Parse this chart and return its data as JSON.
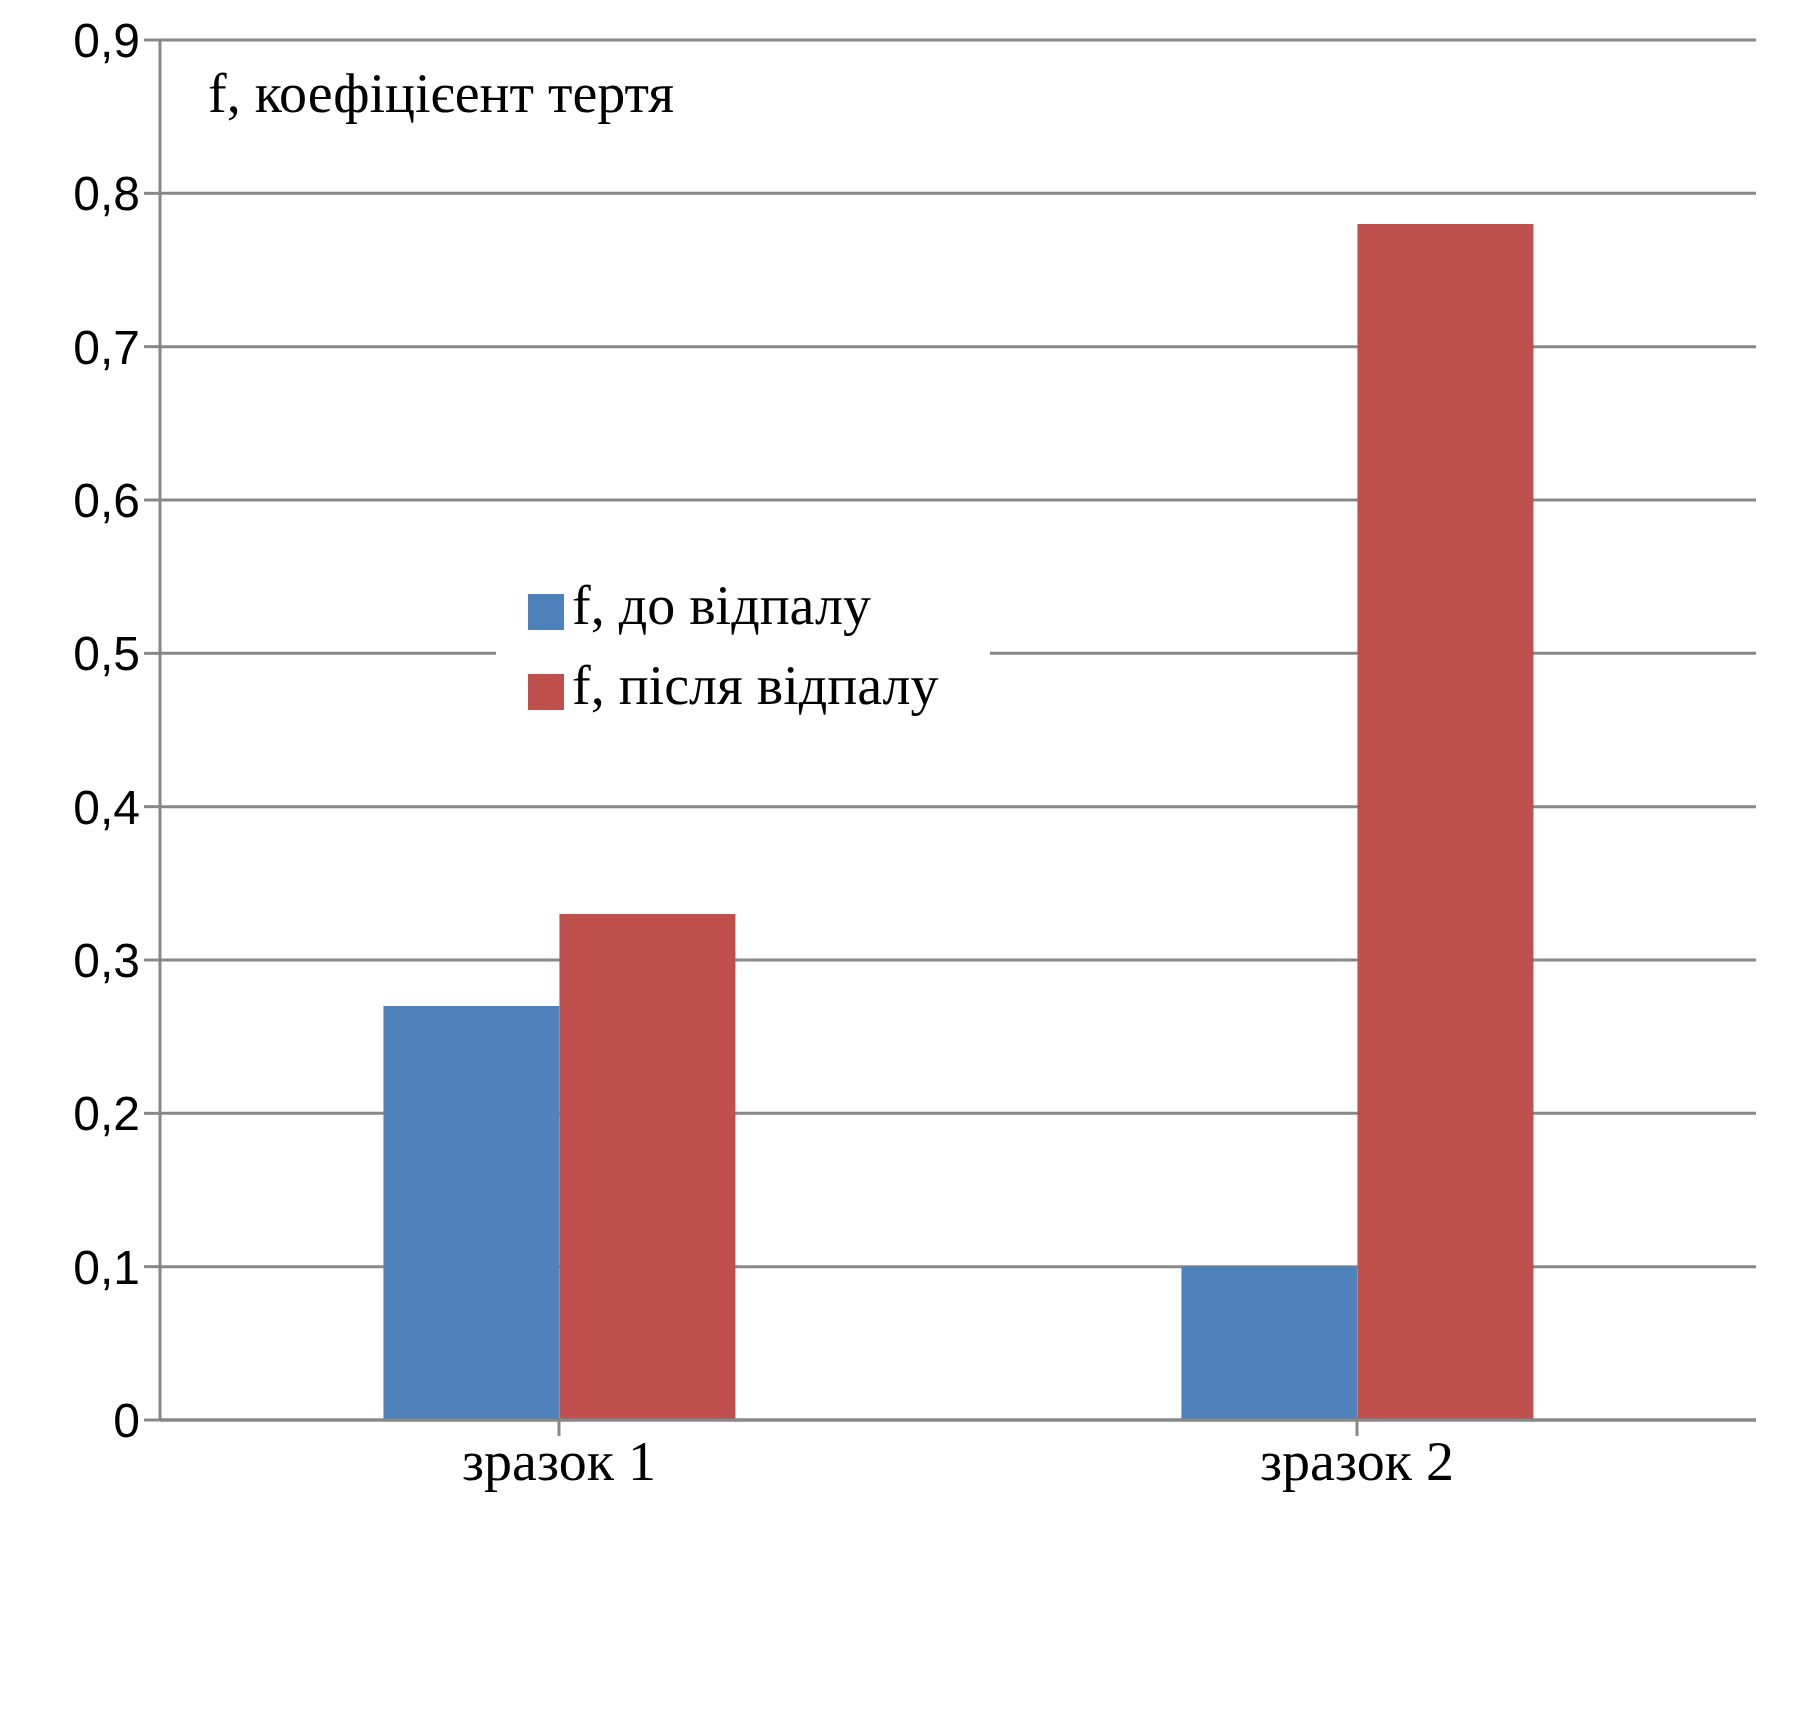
{
  "chart_data": {
    "type": "bar",
    "ylabel": "f, коефіцієент тертя",
    "categories": [
      "зразок 1",
      "зразок 2"
    ],
    "series": [
      {
        "name": "f, до відпалу",
        "color": "#4f81bd",
        "values": [
          0.27,
          0.1
        ]
      },
      {
        "name": "f, після відпалу",
        "color": "#c0504d",
        "values": [
          0.33,
          0.78
        ]
      }
    ],
    "ylim": [
      0,
      0.9
    ],
    "yticks": [
      0,
      {
        "value": 0.1,
        "label": "0,1"
      },
      {
        "value": 0.2,
        "label": "0,2"
      },
      {
        "value": 0.3,
        "label": "0,3"
      },
      {
        "value": 0.4,
        "label": "0,4"
      },
      {
        "value": 0.5,
        "label": "0,5"
      },
      {
        "value": 0.6,
        "label": "0,6"
      },
      {
        "value": 0.7,
        "label": "0,7"
      },
      {
        "value": 0.8,
        "label": "0,8"
      },
      {
        "value": 0.9,
        "label": "0,9"
      }
    ],
    "grid": "y",
    "legend": "left"
  }
}
